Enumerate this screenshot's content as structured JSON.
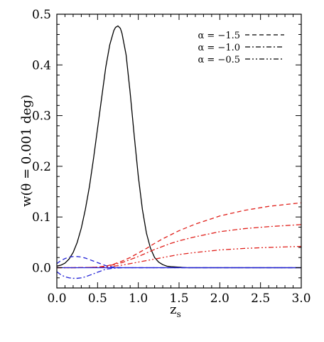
{
  "chart_data": {
    "type": "line",
    "xlabel": "z",
    "xlabel_sub": "s",
    "ylabel": "w(θ = 0.001 deg)",
    "xlim": [
      0.0,
      3.0
    ],
    "ylim": [
      -0.04,
      0.5
    ],
    "x_ticks": [
      "0.0",
      "0.5",
      "1.0",
      "1.5",
      "2.0",
      "2.5",
      "3.0"
    ],
    "x_tick_values": [
      0.0,
      0.5,
      1.0,
      1.5,
      2.0,
      2.5,
      3.0
    ],
    "y_ticks": [
      "0.0",
      "0.1",
      "0.2",
      "0.3",
      "0.4",
      "0.5"
    ],
    "y_tick_values": [
      0.0,
      0.1,
      0.2,
      0.3,
      0.4,
      0.5
    ],
    "grid": false,
    "legend_position": "top-right",
    "legend": [
      {
        "label": "α = −1.5",
        "dash": "dashed"
      },
      {
        "label": "α = −1.0",
        "dash": "dash-dot"
      },
      {
        "label": "α = −0.5",
        "dash": "dash-dot-dot"
      }
    ],
    "series": [
      {
        "color": "#000000",
        "dash": "solid",
        "x": [
          0.0,
          0.05,
          0.1,
          0.15,
          0.2,
          0.25,
          0.3,
          0.35,
          0.4,
          0.45,
          0.5,
          0.55,
          0.6,
          0.65,
          0.7,
          0.72,
          0.75,
          0.78,
          0.8,
          0.85,
          0.9,
          0.95,
          1.0,
          1.05,
          1.1,
          1.15,
          1.2,
          1.25,
          1.3,
          1.35,
          1.4,
          1.5,
          1.6,
          1.8,
          2.0,
          2.5,
          3.0
        ],
        "y": [
          0.003,
          0.005,
          0.009,
          0.017,
          0.03,
          0.05,
          0.078,
          0.115,
          0.16,
          0.215,
          0.275,
          0.335,
          0.395,
          0.44,
          0.468,
          0.474,
          0.477,
          0.472,
          0.462,
          0.42,
          0.345,
          0.26,
          0.18,
          0.115,
          0.068,
          0.038,
          0.02,
          0.011,
          0.006,
          0.003,
          0.002,
          0.001,
          0.0,
          0.0,
          0.0,
          0.0,
          0.0
        ]
      },
      {
        "color": "#e0201b",
        "dash": "dashed",
        "x": [
          0.0,
          0.2,
          0.4,
          0.5,
          0.6,
          0.7,
          0.8,
          0.9,
          1.0,
          1.1,
          1.2,
          1.3,
          1.4,
          1.5,
          1.7,
          2.0,
          2.3,
          2.6,
          3.0
        ],
        "y": [
          0.0,
          0.0,
          0.0005,
          0.001,
          0.003,
          0.007,
          0.013,
          0.02,
          0.029,
          0.038,
          0.048,
          0.057,
          0.065,
          0.073,
          0.086,
          0.102,
          0.113,
          0.121,
          0.128
        ]
      },
      {
        "color": "#e0201b",
        "dash": "dash-dot",
        "x": [
          0.0,
          0.2,
          0.4,
          0.5,
          0.6,
          0.7,
          0.8,
          0.9,
          1.0,
          1.1,
          1.2,
          1.3,
          1.4,
          1.5,
          1.7,
          2.0,
          2.3,
          2.6,
          3.0
        ],
        "y": [
          0.0,
          0.0,
          0.0005,
          0.001,
          0.003,
          0.006,
          0.01,
          0.016,
          0.022,
          0.029,
          0.036,
          0.042,
          0.048,
          0.053,
          0.061,
          0.071,
          0.077,
          0.081,
          0.085
        ]
      },
      {
        "color": "#e0201b",
        "dash": "dash-dot-dot",
        "x": [
          0.0,
          0.2,
          0.4,
          0.5,
          0.6,
          0.7,
          0.8,
          0.9,
          1.0,
          1.1,
          1.2,
          1.3,
          1.4,
          1.5,
          1.7,
          2.0,
          2.3,
          2.6,
          3.0
        ],
        "y": [
          0.0,
          0.0,
          0.0003,
          0.0007,
          0.0015,
          0.003,
          0.005,
          0.008,
          0.011,
          0.014,
          0.017,
          0.02,
          0.023,
          0.026,
          0.03,
          0.035,
          0.038,
          0.04,
          0.042
        ]
      },
      {
        "color": "#1f1fd6",
        "dash": "dashed",
        "x": [
          0.0,
          0.05,
          0.1,
          0.15,
          0.2,
          0.25,
          0.3,
          0.35,
          0.4,
          0.45,
          0.5,
          0.55,
          0.6,
          0.65,
          0.7,
          0.8,
          0.9,
          1.0,
          1.2,
          1.5,
          2.0,
          3.0
        ],
        "y": [
          0.008,
          0.014,
          0.018,
          0.021,
          0.022,
          0.022,
          0.021,
          0.019,
          0.016,
          0.013,
          0.01,
          0.007,
          0.004,
          0.002,
          0.001,
          0.0,
          0.0,
          0.0,
          0.0,
          0.0,
          0.0,
          0.0
        ]
      },
      {
        "color": "#1f1fd6",
        "dash": "dash-dot",
        "x": [
          0.0,
          0.05,
          0.1,
          0.15,
          0.2,
          0.25,
          0.3,
          0.35,
          0.4,
          0.45,
          0.5,
          0.55,
          0.6,
          0.65,
          0.7,
          0.8,
          0.9,
          1.0,
          1.2,
          1.5,
          2.0,
          3.0
        ],
        "y": [
          -0.008,
          -0.014,
          -0.018,
          -0.02,
          -0.021,
          -0.021,
          -0.02,
          -0.018,
          -0.015,
          -0.012,
          -0.009,
          -0.006,
          -0.003,
          -0.002,
          -0.001,
          0.0,
          0.0,
          0.0,
          0.0,
          0.0,
          0.0,
          0.0
        ]
      },
      {
        "color": "#1f1fd6",
        "dash": "solid",
        "x": [
          0.0,
          0.5,
          1.0,
          1.5,
          2.0,
          2.5,
          3.0
        ],
        "y": [
          0.0,
          0.0,
          0.0,
          0.0,
          0.0,
          0.0,
          0.0
        ]
      }
    ]
  }
}
